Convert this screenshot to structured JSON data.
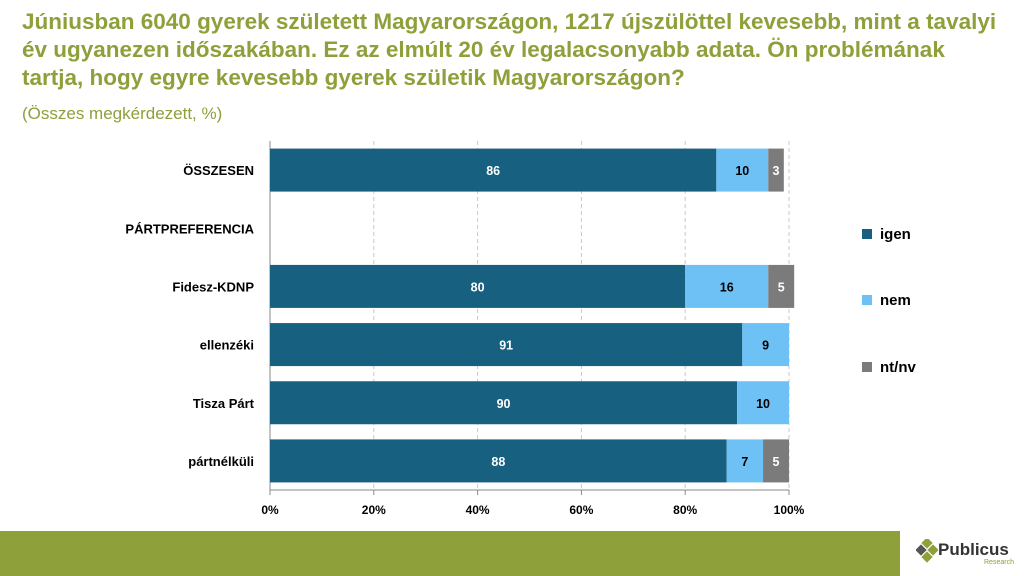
{
  "header": {
    "title": "Júniusban 6040 gyerek született Magyarországon, 1217 újszülöttel kevesebb, mint a tavalyi év ugyanezen időszakában. Ez az elmúlt 20 év legalacsonyabb adata. Ön problémának tartja, hogy egyre kevesebb gyerek születik Magyarországon?",
    "subtitle": "(Összes megkérdezett, %)"
  },
  "logo": {
    "name": "Publicus",
    "sub": "Research",
    "icon": "publicus-diamond-icon"
  },
  "colors": {
    "igen": "#17607f",
    "nem": "#6ec1f5",
    "ntnv": "#7b7b7b",
    "accent": "#8da03a"
  },
  "chart_data": {
    "type": "bar",
    "orientation": "horizontal",
    "stacked": true,
    "categories": [
      "ÖSSZESEN",
      "PÁRTPREFERENCIA",
      "Fidesz-KDNP",
      "ellenzéki",
      "Tisza Párt",
      "pártnélküli"
    ],
    "series": [
      {
        "name": "igen",
        "values": [
          86,
          null,
          80,
          91,
          90,
          88
        ]
      },
      {
        "name": "nem",
        "values": [
          10,
          null,
          16,
          9,
          10,
          7
        ]
      },
      {
        "name": "nt/nv",
        "values": [
          3,
          null,
          5,
          null,
          null,
          5
        ]
      }
    ],
    "xlim": [
      0,
      100
    ],
    "xticks": [
      "0%",
      "20%",
      "40%",
      "60%",
      "80%",
      "100%"
    ],
    "grid": "vertical-dashed",
    "legend": "right"
  }
}
